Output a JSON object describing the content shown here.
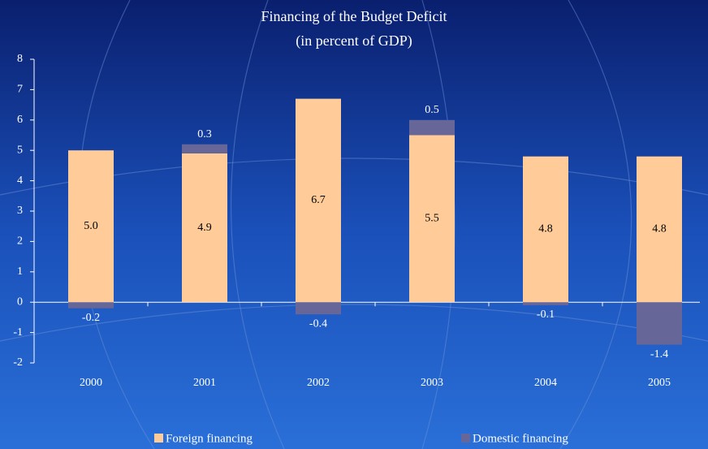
{
  "chart_data": {
    "type": "stacked_bar",
    "title": "Financing of the Budget Deficit",
    "subtitle": "(in percent of GDP)",
    "categories": [
      "2000",
      "2001",
      "2002",
      "2003",
      "2004",
      "2005"
    ],
    "series": [
      {
        "name": "Foreign financing",
        "color": "#ffcc99",
        "values": [
          5.0,
          4.9,
          6.7,
          5.5,
          4.8,
          4.8
        ],
        "value_labels": [
          "5.0",
          "4.9",
          "6.7",
          "5.5",
          "4.8",
          "4.8"
        ]
      },
      {
        "name": "Domestic financing",
        "color": "#666699",
        "values": [
          -0.2,
          0.3,
          -0.4,
          0.5,
          -0.1,
          -1.4
        ]
      }
    ],
    "ylim": [
      -2,
      8
    ],
    "yticks": [
      -2,
      -1,
      0,
      1,
      2,
      3,
      4,
      5,
      6,
      7,
      8
    ],
    "grid": false
  }
}
